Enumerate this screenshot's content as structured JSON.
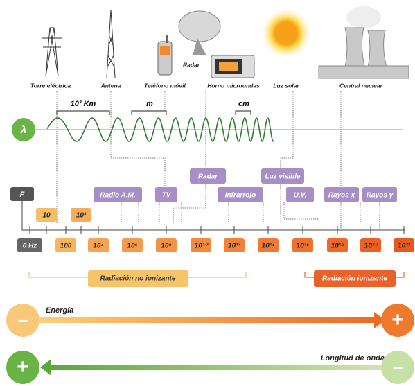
{
  "sources": [
    "Torre eléctrica",
    "Antena",
    "Teléfono móvil",
    "Radar",
    "Horno microondas",
    "Luz solar",
    "Central nuclear"
  ],
  "wavelength": {
    "symbol": "λ",
    "scales": [
      "10³ Km",
      "m",
      "cm"
    ]
  },
  "frequency": {
    "symbol": "F",
    "labels": [
      "0 Hz",
      "10",
      "100",
      "10³",
      "10⁴",
      "10⁶",
      "10⁸",
      "10¹⁰",
      "10¹²",
      "10¹⁴",
      "10¹⁶",
      "10¹⁸",
      "10²⁰",
      "10²²"
    ]
  },
  "bands": [
    "Radar",
    "Luz visible",
    "Radio A.M.",
    "TV",
    "Infrarrojo",
    "U.V.",
    "Rayos x",
    "Rayos γ"
  ],
  "groups": {
    "non_ionizing": "Radiación no ionizante",
    "ionizing": "Radiación ionizante"
  },
  "arrows": {
    "energy": {
      "label": "Energía",
      "start": "–",
      "end": "+"
    },
    "wavelength": {
      "label": "Longitud de onda",
      "start": "+",
      "end": "–"
    }
  }
}
